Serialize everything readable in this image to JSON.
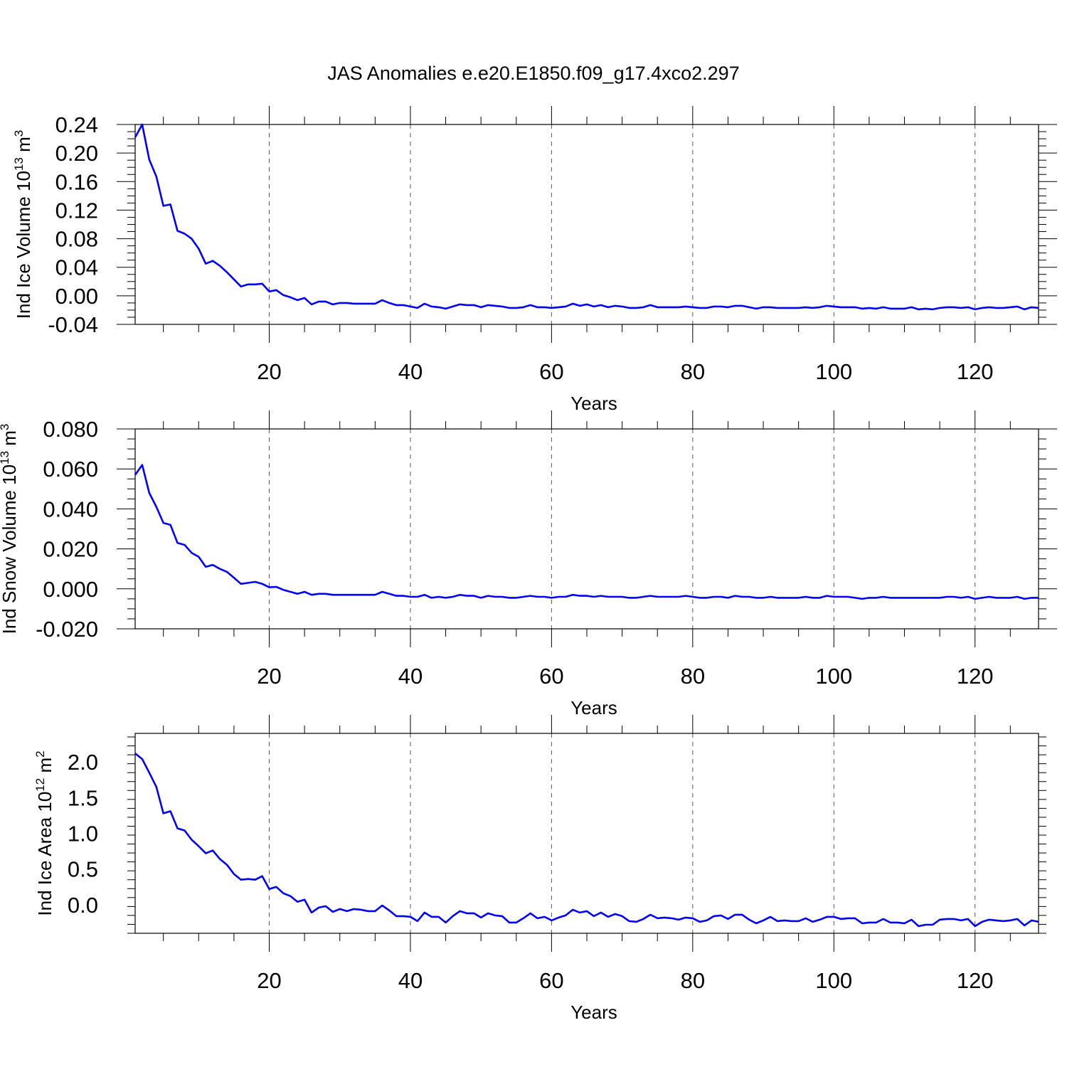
{
  "title": "JAS Anomalies e.e20.E1850.f09_g17.4xco2.297",
  "colors": {
    "line": "#0000ff",
    "grid": "#555555",
    "frame": "#000000"
  },
  "chart_data": [
    {
      "type": "line",
      "ylabel": "Ind Ice Volume 10",
      "ylabel_exp": "13",
      "ylabel_unit": " m",
      "ylabel_unit_exp": "3",
      "xlabel": "Years",
      "xlim": [
        1,
        129
      ],
      "ylim": [
        -0.04,
        0.24
      ],
      "xticks": [
        20,
        40,
        60,
        80,
        100,
        120
      ],
      "xtick_labels": [
        "20",
        "40",
        "60",
        "80",
        "100",
        "120"
      ],
      "yticks": [
        -0.04,
        0.0,
        0.04,
        0.08,
        0.12,
        0.16,
        0.2,
        0.24
      ],
      "ytick_labels": [
        "-0.04",
        "0.00",
        "0.04",
        "0.08",
        "0.12",
        "0.16",
        "0.20",
        "0.24"
      ],
      "grid": "vertical dashed at major x ticks",
      "x_start": 1,
      "values": [
        0.222,
        0.24,
        0.191,
        0.167,
        0.126,
        0.128,
        0.091,
        0.087,
        0.08,
        0.066,
        0.045,
        0.049,
        0.042,
        0.033,
        0.023,
        0.013,
        0.016,
        0.016,
        0.017,
        0.006,
        0.008,
        0.001,
        -0.002,
        -0.006,
        -0.003,
        -0.012,
        -0.008,
        -0.008,
        -0.012,
        -0.01,
        -0.01,
        -0.011,
        -0.011,
        -0.011,
        -0.011,
        -0.006,
        -0.01,
        -0.013,
        -0.013,
        -0.015,
        -0.017,
        -0.011,
        -0.015,
        -0.016,
        -0.018,
        -0.015,
        -0.012,
        -0.013,
        -0.013,
        -0.016,
        -0.013,
        -0.014,
        -0.015,
        -0.017,
        -0.017,
        -0.016,
        -0.013,
        -0.016,
        -0.016,
        -0.017,
        -0.016,
        -0.015,
        -0.011,
        -0.014,
        -0.012,
        -0.015,
        -0.013,
        -0.016,
        -0.014,
        -0.015,
        -0.017,
        -0.017,
        -0.016,
        -0.013,
        -0.016,
        -0.016,
        -0.016,
        -0.016,
        -0.015,
        -0.016,
        -0.017,
        -0.017,
        -0.015,
        -0.015,
        -0.016,
        -0.014,
        -0.014,
        -0.016,
        -0.018,
        -0.016,
        -0.016,
        -0.017,
        -0.017,
        -0.017,
        -0.017,
        -0.016,
        -0.017,
        -0.016,
        -0.014,
        -0.015,
        -0.016,
        -0.016,
        -0.016,
        -0.018,
        -0.017,
        -0.018,
        -0.016,
        -0.018,
        -0.018,
        -0.018,
        -0.016,
        -0.019,
        -0.018,
        -0.019,
        -0.017,
        -0.016,
        -0.016,
        -0.017,
        -0.016,
        -0.019,
        -0.017,
        -0.016,
        -0.017,
        -0.017,
        -0.016,
        -0.015,
        -0.019,
        -0.016,
        -0.017
      ]
    },
    {
      "type": "line",
      "ylabel": "Ind Snow Volume 10",
      "ylabel_exp": "13",
      "ylabel_unit": " m",
      "ylabel_unit_exp": "3",
      "xlabel": "Years",
      "xlim": [
        1,
        129
      ],
      "ylim": [
        -0.02,
        0.08
      ],
      "xticks": [
        20,
        40,
        60,
        80,
        100,
        120
      ],
      "xtick_labels": [
        "20",
        "40",
        "60",
        "80",
        "100",
        "120"
      ],
      "yticks": [
        -0.02,
        0.0,
        0.02,
        0.04,
        0.06,
        0.08
      ],
      "ytick_labels": [
        "-0.020",
        "0.000",
        "0.020",
        "0.040",
        "0.060",
        "0.080"
      ],
      "grid": "vertical dashed at major x ticks",
      "x_start": 1,
      "values": [
        0.057,
        0.062,
        0.048,
        0.041,
        0.033,
        0.032,
        0.023,
        0.022,
        0.018,
        0.016,
        0.011,
        0.012,
        0.01,
        0.0085,
        0.0055,
        0.0025,
        0.003,
        0.0035,
        0.0025,
        0.0008,
        0.001,
        -0.0005,
        -0.0015,
        -0.0025,
        -0.0015,
        -0.003,
        -0.0025,
        -0.0025,
        -0.003,
        -0.003,
        -0.003,
        -0.003,
        -0.003,
        -0.003,
        -0.003,
        -0.0015,
        -0.0025,
        -0.0035,
        -0.0035,
        -0.004,
        -0.004,
        -0.003,
        -0.0045,
        -0.004,
        -0.0045,
        -0.004,
        -0.003,
        -0.0035,
        -0.0035,
        -0.0045,
        -0.0035,
        -0.004,
        -0.004,
        -0.0045,
        -0.0045,
        -0.004,
        -0.0035,
        -0.004,
        -0.004,
        -0.0045,
        -0.004,
        -0.004,
        -0.003,
        -0.0035,
        -0.0035,
        -0.004,
        -0.0035,
        -0.004,
        -0.004,
        -0.004,
        -0.0045,
        -0.0045,
        -0.004,
        -0.0035,
        -0.004,
        -0.004,
        -0.004,
        -0.004,
        -0.0035,
        -0.004,
        -0.0045,
        -0.0045,
        -0.004,
        -0.004,
        -0.0045,
        -0.0035,
        -0.004,
        -0.004,
        -0.0045,
        -0.0045,
        -0.004,
        -0.0045,
        -0.0045,
        -0.0045,
        -0.0045,
        -0.004,
        -0.0045,
        -0.0045,
        -0.0035,
        -0.004,
        -0.004,
        -0.004,
        -0.0045,
        -0.005,
        -0.0045,
        -0.0045,
        -0.004,
        -0.0045,
        -0.0045,
        -0.0045,
        -0.0045,
        -0.0045,
        -0.0045,
        -0.0045,
        -0.0045,
        -0.004,
        -0.004,
        -0.0045,
        -0.004,
        -0.005,
        -0.0045,
        -0.004,
        -0.0045,
        -0.0045,
        -0.0045,
        -0.004,
        -0.005,
        -0.0045,
        -0.0045
      ]
    },
    {
      "type": "line",
      "ylabel": "Ind Ice Area 10",
      "ylabel_exp": "12",
      "ylabel_unit": " m",
      "ylabel_unit_exp": "2",
      "xlabel": "Years",
      "xlim": [
        1,
        129
      ],
      "ylim": [
        -0.4,
        2.4
      ],
      "xticks": [
        20,
        40,
        60,
        80,
        100,
        120
      ],
      "xtick_labels": [
        "20",
        "40",
        "60",
        "80",
        "100",
        "120"
      ],
      "yticks": [
        0.0,
        0.5,
        1.0,
        1.5,
        2.0
      ],
      "ytick_labels": [
        "0.0",
        "0.5",
        "1.0",
        "1.5",
        "2.0"
      ],
      "grid": "vertical dashed at major x ticks",
      "x_start": 1,
      "values": [
        2.12,
        2.04,
        1.85,
        1.65,
        1.28,
        1.31,
        1.07,
        1.04,
        0.91,
        0.82,
        0.72,
        0.76,
        0.64,
        0.56,
        0.43,
        0.35,
        0.36,
        0.35,
        0.4,
        0.22,
        0.25,
        0.16,
        0.12,
        0.04,
        0.07,
        -0.11,
        -0.04,
        -0.02,
        -0.1,
        -0.06,
        -0.09,
        -0.06,
        -0.07,
        -0.09,
        -0.09,
        -0.01,
        -0.08,
        -0.16,
        -0.16,
        -0.17,
        -0.23,
        -0.11,
        -0.17,
        -0.17,
        -0.25,
        -0.16,
        -0.09,
        -0.12,
        -0.12,
        -0.18,
        -0.12,
        -0.15,
        -0.16,
        -0.25,
        -0.25,
        -0.19,
        -0.12,
        -0.19,
        -0.17,
        -0.22,
        -0.18,
        -0.15,
        -0.07,
        -0.11,
        -0.09,
        -0.16,
        -0.11,
        -0.17,
        -0.13,
        -0.16,
        -0.23,
        -0.24,
        -0.2,
        -0.14,
        -0.19,
        -0.18,
        -0.19,
        -0.21,
        -0.18,
        -0.19,
        -0.24,
        -0.22,
        -0.16,
        -0.15,
        -0.2,
        -0.14,
        -0.14,
        -0.21,
        -0.26,
        -0.22,
        -0.17,
        -0.23,
        -0.22,
        -0.23,
        -0.23,
        -0.19,
        -0.24,
        -0.21,
        -0.17,
        -0.17,
        -0.2,
        -0.19,
        -0.19,
        -0.26,
        -0.25,
        -0.25,
        -0.2,
        -0.25,
        -0.25,
        -0.26,
        -0.21,
        -0.3,
        -0.28,
        -0.28,
        -0.21,
        -0.2,
        -0.2,
        -0.22,
        -0.2,
        -0.3,
        -0.24,
        -0.21,
        -0.22,
        -0.23,
        -0.22,
        -0.2,
        -0.29,
        -0.22,
        -0.24
      ]
    }
  ]
}
